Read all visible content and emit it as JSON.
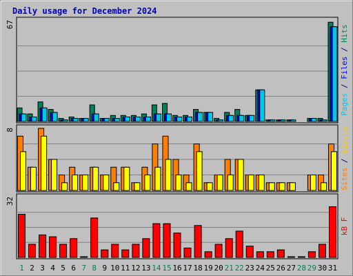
{
  "chart_data": {
    "type": "bar",
    "title": "Daily usage for December 2024",
    "categories": [
      "1",
      "2",
      "3",
      "4",
      "5",
      "6",
      "7",
      "8",
      "9",
      "10",
      "11",
      "12",
      "13",
      "14",
      "15",
      "16",
      "17",
      "18",
      "19",
      "20",
      "21",
      "22",
      "23",
      "24",
      "25",
      "26",
      "27",
      "28",
      "29",
      "30",
      "31"
    ],
    "weekend_days": [
      "1",
      "7",
      "8",
      "14",
      "15",
      "21",
      "22",
      "28",
      "29"
    ],
    "panels": [
      {
        "name": "hits-files-pages",
        "ymax": 67,
        "ymax_label": "67",
        "series": [
          {
            "name": "Hits",
            "color": "#00805c",
            "values": [
              9,
              5,
              13,
              8,
              2,
              3,
              2,
              11,
              2,
              4,
              4,
              4,
              5,
              11,
              12,
              4,
              4,
              8,
              6,
              2,
              6,
              8,
              4,
              21,
              1,
              1,
              1,
              0,
              2,
              2,
              66
            ]
          },
          {
            "name": "Files",
            "color": "#0000ff",
            "values": [
              5,
              3,
              9,
              6,
              1,
              2,
              2,
              5,
              2,
              2,
              3,
              3,
              3,
              5,
              5,
              3,
              3,
              6,
              6,
              1,
              4,
              4,
              4,
              21,
              1,
              1,
              1,
              0,
              2,
              1,
              63
            ]
          },
          {
            "name": "Pages",
            "color": "#00c8e8",
            "values": [
              5,
              3,
              9,
              6,
              1,
              2,
              2,
              5,
              2,
              2,
              3,
              3,
              3,
              5,
              5,
              3,
              3,
              6,
              6,
              1,
              4,
              4,
              4,
              21,
              1,
              1,
              1,
              0,
              2,
              1,
              63
            ]
          }
        ],
        "label_parts": [
          {
            "text": "Pages",
            "color": "#00c8e8"
          },
          {
            "text": " / ",
            "color": "#000080"
          },
          {
            "text": "Files",
            "color": "#0000ff"
          },
          {
            "text": " / ",
            "color": "#000080"
          },
          {
            "text": "Hits",
            "color": "#00805c"
          }
        ]
      },
      {
        "name": "visits-sites",
        "ymax": 8,
        "ymax_label": "8",
        "series": [
          {
            "name": "Visits",
            "color": "#ff8000",
            "values": [
              7,
              3,
              8,
              4,
              2,
              3,
              2,
              3,
              2,
              3,
              3,
              1,
              3,
              6,
              7,
              4,
              2,
              6,
              1,
              2,
              4,
              4,
              2,
              2,
              1,
              1,
              1,
              0,
              2,
              2,
              6
            ]
          },
          {
            "name": "Sites",
            "color": "#ffff00",
            "values": [
              5,
              3,
              7,
              4,
              1,
              2,
              2,
              3,
              2,
              1,
              3,
              1,
              2,
              3,
              4,
              2,
              1,
              5,
              1,
              2,
              2,
              4,
              2,
              2,
              1,
              1,
              1,
              0,
              2,
              1,
              5
            ]
          }
        ],
        "label_parts": [
          {
            "text": "Sites",
            "color": "#ff8000"
          },
          {
            "text": " / ",
            "color": "#000080"
          },
          {
            "text": "Visits",
            "color": "#ffcc00"
          }
        ]
      },
      {
        "name": "kbytes",
        "ymax": 32,
        "ymax_label": "32",
        "series": [
          {
            "name": "kB F",
            "color": "#ff0000",
            "values": [
              23,
              7,
              12,
              11,
              7,
              10,
              0,
              21,
              4,
              7,
              4,
              7,
              10,
              18,
              18,
              13,
              5,
              17,
              3,
              7,
              10,
              14,
              6,
              3,
              3,
              4,
              0,
              0,
              3,
              7,
              27
            ]
          }
        ],
        "label_parts": [
          {
            "text": "kB F",
            "color": "#ff0000"
          }
        ]
      }
    ],
    "grid": true,
    "legend": "right (vertical text)"
  },
  "colors": {
    "panel_bg": "#c0c0c0",
    "grid": "#808080",
    "title": "#0000c0",
    "axis_label": "#000080",
    "weekend_label": "#00805c",
    "bar_stroke": "#000000"
  }
}
